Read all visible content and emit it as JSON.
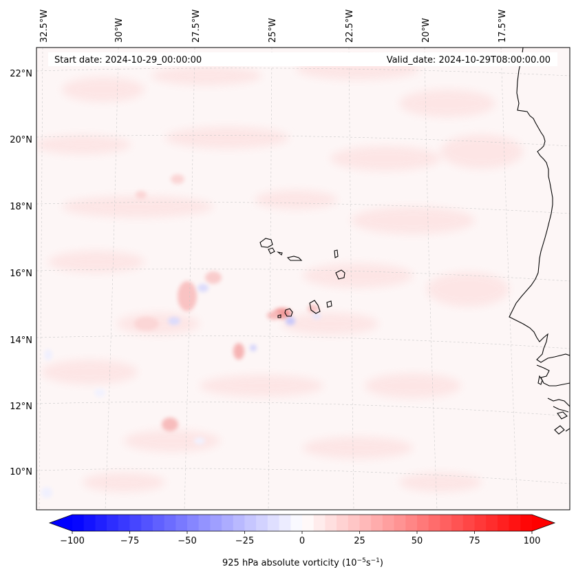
{
  "header": {
    "start_date": "Start date: 2024-10-29_00:00:00",
    "valid_date": "Valid_date: 2024-10-29T08:00:00.00"
  },
  "axes": {
    "lon_labels": [
      "32.5°W",
      "30°W",
      "27.5°W",
      "25°W",
      "22.5°W",
      "20°W",
      "17.5°W"
    ],
    "lat_labels": [
      "22°N",
      "20°N",
      "18°N",
      "16°N",
      "14°N",
      "12°N",
      "10°N"
    ]
  },
  "colorbar": {
    "title_prefix": "925 hPa absolute vorticity (10",
    "exp1": "−5",
    "mid": "s",
    "exp2": "−1",
    "title_suffix": ")",
    "min": -100,
    "max": 100,
    "step": 5,
    "ticks": [
      "−100",
      "−75",
      "−50",
      "−25",
      "0",
      "25",
      "50",
      "75",
      "100"
    ],
    "colormap": "bwr",
    "low_color": "#0000ff",
    "mid_color": "#ffffff",
    "high_color": "#ff0000"
  },
  "map": {
    "field": "925 hPa absolute vorticity",
    "background_color": "#fdf5f5",
    "coastline_color": "#000000",
    "gridline_color": "#cccccc",
    "gridline_style": "dashed"
  }
}
